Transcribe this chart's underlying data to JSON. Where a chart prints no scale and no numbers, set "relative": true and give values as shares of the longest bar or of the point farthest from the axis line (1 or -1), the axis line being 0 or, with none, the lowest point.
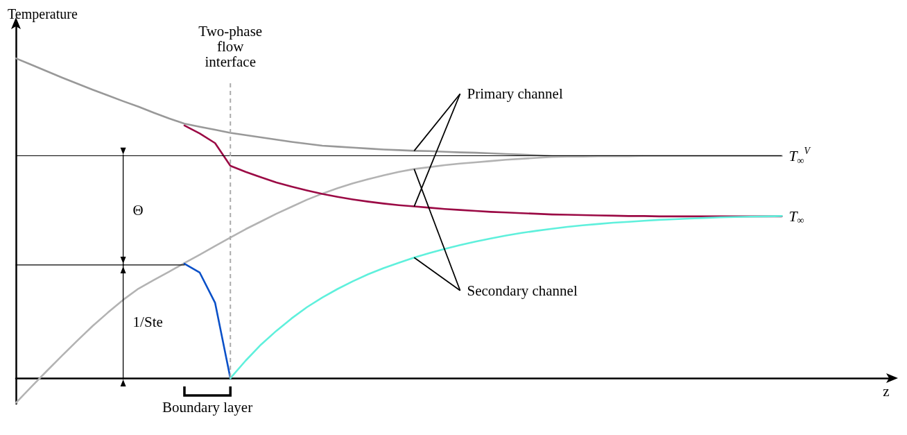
{
  "chart_data": {
    "type": "line",
    "relative": true,
    "xlabel": "z",
    "ylabel": "Temperature",
    "marker": "none",
    "grid": false,
    "categories": [
      null,
      null,
      null,
      null,
      null,
      null,
      null,
      null,
      null,
      null,
      null,
      null,
      null,
      null,
      null,
      null,
      null,
      null,
      null,
      null,
      null,
      null,
      null,
      null,
      null,
      null,
      null,
      null,
      null,
      null,
      null,
      null,
      null,
      null,
      null,
      null,
      null,
      null,
      null,
      null,
      null,
      null,
      null,
      null,
      null,
      null,
      null,
      null,
      null,
      null,
      null,
      null,
      null,
      null,
      null,
      null,
      null,
      null
    ],
    "series": [
      {
        "color": "#999999",
        "values": [
          1,
          0.98,
          0.96,
          0.94,
          0.921,
          0.902,
          0.884,
          0.866,
          0.849,
          0.83,
          0.812,
          0.796,
          0.786,
          0.777,
          0.767,
          0.76,
          0.753,
          0.746,
          0.739,
          0.733,
          0.727,
          0.724,
          0.721,
          0.718,
          0.715,
          0.713,
          0.711,
          0.71,
          0.708,
          0.706,
          0.705,
          0.703,
          0.701,
          0.699,
          0.697,
          0.695,
          0.695,
          0.695,
          0.695,
          0.695,
          0.695,
          0.695,
          0.695,
          0.695,
          0.695,
          0.695,
          0.695,
          0.695,
          0.695,
          0.695,
          0.695,
          null,
          null,
          null,
          null,
          null,
          null,
          null
        ]
      },
      {
        "color": "#b3b3b3",
        "values": [
          -0.077,
          -0.027,
          0.022,
          0.07,
          0.117,
          0.163,
          0.205,
          0.245,
          0.28,
          0.307,
          0.333,
          0.36,
          0.386,
          0.413,
          0.44,
          0.466,
          0.49,
          0.514,
          0.536,
          0.558,
          0.577,
          0.594,
          0.609,
          0.622,
          0.634,
          0.645,
          0.654,
          0.66,
          0.666,
          0.671,
          0.675,
          0.679,
          0.683,
          0.686,
          0.689,
          0.692,
          0.693,
          0.693,
          0.694,
          0.694,
          0.694,
          0.695,
          0.695,
          0.695,
          0.695,
          0.695,
          0.695,
          0.695,
          0.695,
          0.695,
          0.695,
          null,
          null,
          null,
          null,
          null,
          null,
          null
        ]
      },
      {
        "color": "#9b0a45",
        "values": [
          null,
          null,
          null,
          null,
          null,
          null,
          null,
          null,
          null,
          null,
          null,
          0.79,
          0.765,
          0.735,
          0.664,
          0.645,
          0.628,
          0.612,
          0.599,
          0.587,
          0.576,
          0.567,
          0.559,
          0.552,
          0.546,
          0.541,
          0.537,
          0.533,
          0.529,
          0.526,
          0.523,
          0.52,
          0.518,
          0.516,
          0.514,
          0.512,
          0.511,
          0.51,
          0.509,
          0.508,
          0.507,
          0.507,
          0.506,
          0.506,
          0.506,
          0.506,
          0.506,
          0.506,
          0.506,
          0.506,
          0.506,
          null,
          null,
          null,
          null,
          null,
          null,
          null
        ]
      },
      {
        "color": "#0a50c8",
        "values": [
          null,
          null,
          null,
          null,
          null,
          null,
          null,
          null,
          null,
          null,
          null,
          0.358,
          0.33,
          0.236,
          0,
          null,
          null,
          null,
          null,
          null,
          null,
          null,
          null,
          null,
          null,
          null,
          null,
          null,
          null,
          null,
          null,
          null,
          null,
          null,
          null,
          null,
          null,
          null,
          null,
          null,
          null,
          null,
          null,
          null,
          null,
          null,
          null,
          null,
          null,
          null,
          null,
          null,
          null,
          null,
          null,
          null,
          null,
          null
        ]
      },
      {
        "color": "#5ff0dc",
        "values": [
          null,
          null,
          null,
          null,
          null,
          null,
          null,
          null,
          null,
          null,
          null,
          null,
          null,
          null,
          0,
          0.055,
          0.105,
          0.148,
          0.187,
          0.222,
          0.252,
          0.279,
          0.303,
          0.325,
          0.344,
          0.361,
          0.377,
          0.391,
          0.404,
          0.416,
          0.427,
          0.437,
          0.446,
          0.454,
          0.461,
          0.467,
          0.473,
          0.478,
          0.482,
          0.486,
          0.489,
          0.492,
          0.495,
          0.497,
          0.499,
          0.501,
          0.503,
          0.504,
          0.505,
          0.506,
          0.507,
          null,
          null,
          null,
          null,
          null,
          null,
          null
        ]
      },
      {
        "color": "#000000",
        "values": [
          0.354,
          0.354,
          0.354,
          0.354,
          0.354,
          0.354,
          0.354,
          0.354,
          0.354,
          0.354,
          0.354,
          0.354,
          null,
          null,
          null,
          null,
          null,
          null,
          null,
          null,
          null,
          null,
          null,
          null,
          null,
          null,
          null,
          null,
          null,
          null,
          null,
          null,
          null,
          null,
          null,
          null,
          null,
          null,
          null,
          null,
          null,
          null,
          null,
          null,
          null,
          null,
          null,
          null,
          null,
          null,
          null,
          null,
          null,
          null,
          null,
          null,
          null,
          null
        ]
      }
    ],
    "ref_lines": [
      {
        "axis": "y",
        "value": 0.695,
        "label": "T$_{∞}$$^{V}$",
        "color": "#000000",
        "line_style": "solid"
      }
    ],
    "annotations": [
      "Primary channel",
      "Secondary channel",
      "Θ",
      "1/Ste",
      "Boundary layer",
      "T$_{∞}$",
      "Two-phase\nflow\ninterface"
    ]
  }
}
